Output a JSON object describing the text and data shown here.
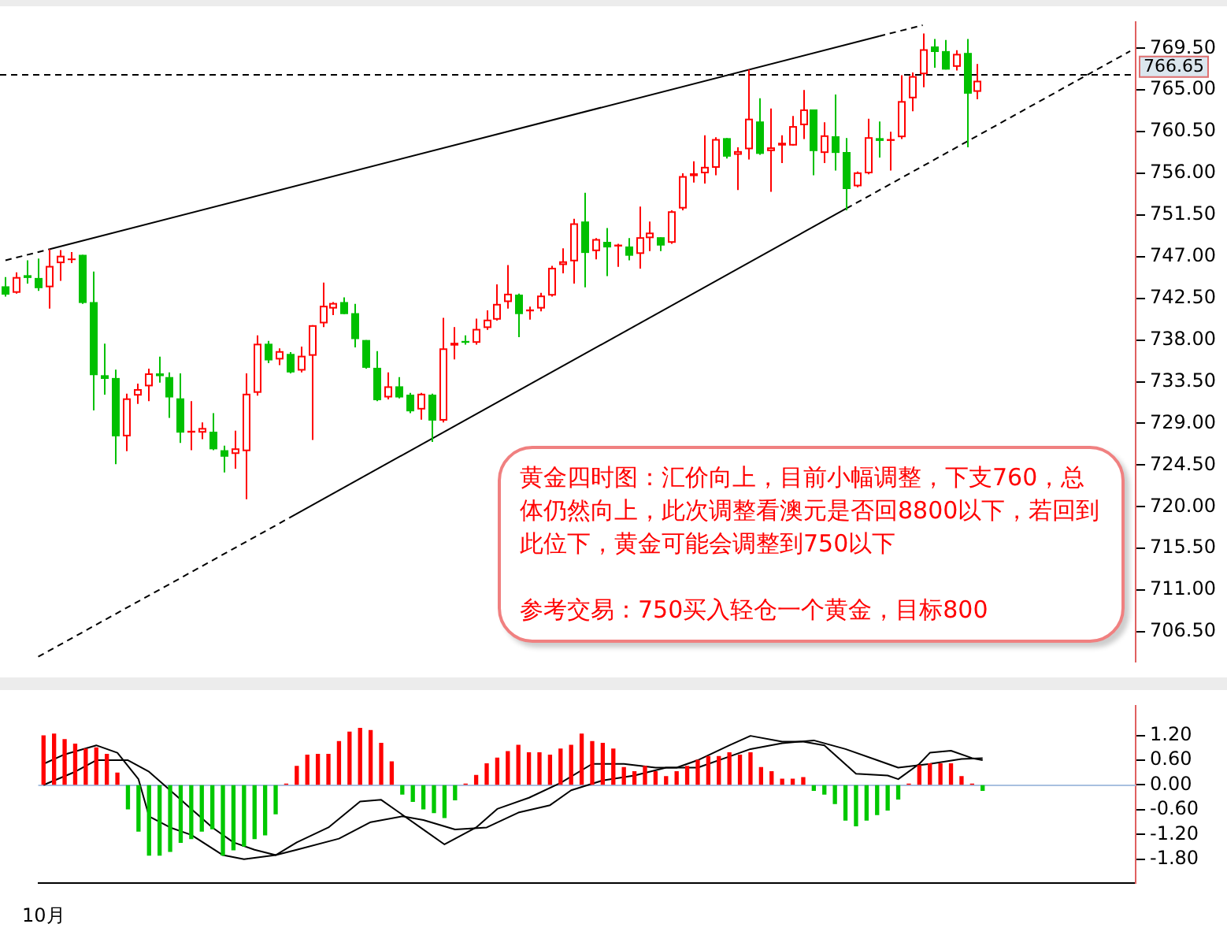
{
  "chart_data": [
    {
      "type": "candlestick",
      "categories": [
        null,
        null,
        null,
        null,
        null,
        null,
        null,
        null,
        null,
        null,
        null,
        null,
        null,
        null,
        null,
        null,
        null,
        null,
        null,
        null,
        null,
        null,
        null,
        null,
        null,
        null,
        null,
        null,
        null,
        null,
        null,
        null,
        null,
        null,
        null,
        null,
        null,
        null,
        null,
        null,
        null,
        null,
        null,
        null,
        null,
        null,
        null,
        null,
        null,
        null,
        null,
        null,
        null,
        null,
        null,
        null,
        null,
        null,
        null,
        null,
        null,
        null,
        null,
        null,
        null,
        null,
        null,
        null,
        null,
        null,
        null,
        null,
        null,
        null,
        null,
        null,
        null,
        null,
        null,
        null,
        null,
        null,
        null,
        null,
        null,
        null,
        null,
        null,
        null,
        null,
        null,
        null,
        null,
        null,
        null,
        null,
        null,
        null,
        null,
        null,
        null,
        null,
        null,
        null
      ],
      "ohlc": [
        [
          743.8,
          744.8,
          742.7,
          742.9
        ],
        [
          743.1,
          745.3,
          743.0,
          744.8
        ],
        [
          745.0,
          746.6,
          744.1,
          744.7
        ],
        [
          744.7,
          746.8,
          743.3,
          743.6
        ],
        [
          743.7,
          747.8,
          741.4,
          746.0
        ],
        [
          746.3,
          747.7,
          744.4,
          747.1
        ],
        [
          746.7,
          747.5,
          746.3,
          746.8
        ],
        [
          747.2,
          747.2,
          741.9,
          742.0
        ],
        [
          742.1,
          745.4,
          730.4,
          734.2
        ],
        [
          734.2,
          737.6,
          732.1,
          733.8
        ],
        [
          733.9,
          734.8,
          724.6,
          727.6
        ],
        [
          727.6,
          732.2,
          726.0,
          731.7
        ],
        [
          732.0,
          733.3,
          731.1,
          732.7
        ],
        [
          733.0,
          734.9,
          731.4,
          734.4
        ],
        [
          734.4,
          736.2,
          733.4,
          734.1
        ],
        [
          734.0,
          734.5,
          729.6,
          731.8
        ],
        [
          731.7,
          734.4,
          726.9,
          728.0
        ],
        [
          728.0,
          731.4,
          726.1,
          728.2
        ],
        [
          728.0,
          729.1,
          727.3,
          728.5
        ],
        [
          728.1,
          730.1,
          726.1,
          726.2
        ],
        [
          726.1,
          726.6,
          723.7,
          725.4
        ],
        [
          725.7,
          728.2,
          724.1,
          726.3
        ],
        [
          726.0,
          734.4,
          720.8,
          732.2
        ],
        [
          732.3,
          738.5,
          732.0,
          737.6
        ],
        [
          737.6,
          737.9,
          735.5,
          735.8
        ],
        [
          735.9,
          737.1,
          735.3,
          736.8
        ],
        [
          736.5,
          736.7,
          734.4,
          734.5
        ],
        [
          734.7,
          737.3,
          734.5,
          736.3
        ],
        [
          736.3,
          739.6,
          727.2,
          739.6
        ],
        [
          739.8,
          744.2,
          739.4,
          741.7
        ],
        [
          741.4,
          742.1,
          740.7,
          742.0
        ],
        [
          742.1,
          742.6,
          740.8,
          740.8
        ],
        [
          740.9,
          741.9,
          737.2,
          738.1
        ],
        [
          738.0,
          738.0,
          734.9,
          735.0
        ],
        [
          735.0,
          736.8,
          731.4,
          731.5
        ],
        [
          731.8,
          734.5,
          731.6,
          733.0
        ],
        [
          733.0,
          734.0,
          731.7,
          731.8
        ],
        [
          732.1,
          732.3,
          730.1,
          730.3
        ],
        [
          730.5,
          732.3,
          729.4,
          732.2
        ],
        [
          732.1,
          732.2,
          727.0,
          729.3
        ],
        [
          729.3,
          740.4,
          729.1,
          737.1
        ],
        [
          737.4,
          739.4,
          735.9,
          737.7
        ],
        [
          737.9,
          738.5,
          737.5,
          737.7
        ],
        [
          737.7,
          740.3,
          737.5,
          739.2
        ],
        [
          739.3,
          741.2,
          739.1,
          740.2
        ],
        [
          740.2,
          744.0,
          740.1,
          741.9
        ],
        [
          742.1,
          746.1,
          741.4,
          743.0
        ],
        [
          742.9,
          743.0,
          738.3,
          740.8
        ],
        [
          741.1,
          741.6,
          740.2,
          741.3
        ],
        [
          741.4,
          743.1,
          741.1,
          742.8
        ],
        [
          742.8,
          746.0,
          742.7,
          745.8
        ],
        [
          746.1,
          747.9,
          745.2,
          746.5
        ],
        [
          746.5,
          751.1,
          744.1,
          750.6
        ],
        [
          750.8,
          753.9,
          743.7,
          747.4
        ],
        [
          747.6,
          749.0,
          746.7,
          748.9
        ],
        [
          748.6,
          750.1,
          744.9,
          748.0
        ],
        [
          748.1,
          748.4,
          745.9,
          748.3
        ],
        [
          748.1,
          749.0,
          746.6,
          747.1
        ],
        [
          747.3,
          752.4,
          745.7,
          749.1
        ],
        [
          749.0,
          750.8,
          747.6,
          749.6
        ],
        [
          749.1,
          749.1,
          747.6,
          748.2
        ],
        [
          748.5,
          752.0,
          748.4,
          751.9
        ],
        [
          752.2,
          756.0,
          752.0,
          755.7
        ],
        [
          755.7,
          757.3,
          755.0,
          756.0
        ],
        [
          756.0,
          760.1,
          754.9,
          756.7
        ],
        [
          756.6,
          759.9,
          755.8,
          759.7
        ],
        [
          759.8,
          759.8,
          757.6,
          757.8
        ],
        [
          758.0,
          758.8,
          754.2,
          758.4
        ],
        [
          758.6,
          767.2,
          757.5,
          761.9
        ],
        [
          761.6,
          764.1,
          758.0,
          758.1
        ],
        [
          758.4,
          763.0,
          754.0,
          758.8
        ],
        [
          759.0,
          760.1,
          757.1,
          759.3
        ],
        [
          759.0,
          762.2,
          759.0,
          761.1
        ],
        [
          761.2,
          765.0,
          759.7,
          762.9
        ],
        [
          762.9,
          762.9,
          755.8,
          758.4
        ],
        [
          758.2,
          761.5,
          757.1,
          760.1
        ],
        [
          760.0,
          764.5,
          756.3,
          758.2
        ],
        [
          758.3,
          759.8,
          752.0,
          754.3
        ],
        [
          754.6,
          756.2,
          754.5,
          756.1
        ],
        [
          756.0,
          761.9,
          755.9,
          759.9
        ],
        [
          759.8,
          761.6,
          757.7,
          759.5
        ],
        [
          759.5,
          760.5,
          756.3,
          759.7
        ],
        [
          759.9,
          766.6,
          759.7,
          763.8
        ],
        [
          764.1,
          766.9,
          762.7,
          766.5
        ],
        [
          766.7,
          771.1,
          765.3,
          769.4
        ],
        [
          769.7,
          770.5,
          767.4,
          769.1
        ],
        [
          769.2,
          770.4,
          767.2,
          767.2
        ],
        [
          767.5,
          769.3,
          767.1,
          768.9
        ],
        [
          769.0,
          770.5,
          758.8,
          764.6
        ],
        [
          764.8,
          767.8,
          764.0,
          766.0
        ],
        null,
        null,
        null,
        null,
        null,
        null,
        null,
        null,
        null,
        null,
        null,
        null,
        null,
        null
      ],
      "colors": [
        "#00c000",
        "#ff0000",
        "#00c000",
        "#00c000",
        "#ff0000",
        "#ff0000",
        "#ff0000",
        "#00c000",
        "#00c000",
        "#00c000",
        "#00c000",
        "#ff0000",
        "#ff0000",
        "#ff0000",
        "#00c000",
        "#00c000",
        "#00c000",
        "#ff0000",
        "#ff0000",
        "#00c000",
        "#00c000",
        "#ff0000",
        "#ff0000",
        "#ff0000",
        "#00c000",
        "#ff0000",
        "#00c000",
        "#ff0000",
        "#ff0000",
        "#ff0000",
        "#ff0000",
        "#00c000",
        "#00c000",
        "#00c000",
        "#00c000",
        "#ff0000",
        "#00c000",
        "#00c000",
        "#ff0000",
        "#00c000",
        "#ff0000",
        "#ff0000",
        "#00c000",
        "#ff0000",
        "#ff0000",
        "#ff0000",
        "#ff0000",
        "#00c000",
        "#ff0000",
        "#ff0000",
        "#ff0000",
        "#ff0000",
        "#ff0000",
        "#00c000",
        "#ff0000",
        "#00c000",
        "#ff0000",
        "#00c000",
        "#ff0000",
        "#ff0000",
        "#00c000",
        "#ff0000",
        "#ff0000",
        "#ff0000",
        "#ff0000",
        "#ff0000",
        "#00c000",
        "#ff0000",
        "#ff0000",
        "#00c000",
        "#ff0000",
        "#ff0000",
        "#ff0000",
        "#ff0000",
        "#00c000",
        "#ff0000",
        "#00c000",
        "#00c000",
        "#ff0000",
        "#ff0000",
        "#00c000",
        "#ff0000",
        "#ff0000",
        "#ff0000",
        "#ff0000",
        "#00c000",
        "#00c000",
        "#ff0000",
        "#00c000",
        "#ff0000",
        null,
        null,
        null,
        null,
        null,
        null,
        null,
        null,
        null,
        null,
        null,
        null,
        null,
        null
      ],
      "ylim": [
        703.3,
        772.3
      ],
      "yticks": [
        {
          "value": 706.5,
          "label": "706.50"
        },
        {
          "value": 711,
          "label": "711.00"
        },
        {
          "value": 715.5,
          "label": "715.50"
        },
        {
          "value": 720,
          "label": "720.00"
        },
        {
          "value": 724.5,
          "label": "724.50"
        },
        {
          "value": 729,
          "label": "729.00"
        },
        {
          "value": 733.5,
          "label": "733.50"
        },
        {
          "value": 738,
          "label": "738.00"
        },
        {
          "value": 742.5,
          "label": "742.50"
        },
        {
          "value": 747,
          "label": "747.00"
        },
        {
          "value": 751.5,
          "label": "751.50"
        },
        {
          "value": 756,
          "label": "756.00"
        },
        {
          "value": 760.5,
          "label": "760.50"
        },
        {
          "value": 765,
          "label": "765.00"
        },
        {
          "value": 769.5,
          "label": "769.50"
        }
      ],
      "tick_labels": "y",
      "ref_lines": [
        {
          "axis": "y",
          "value": 766.65,
          "label": "766.65",
          "color": "#000000",
          "line_style": "dashed"
        }
      ],
      "series": [
        {
          "type": "line",
          "color": "#000000",
          "line_style": "dashed",
          "values": [
            746.6,
            null,
            null,
            null,
            747.8,
            null,
            null,
            null,
            null,
            null,
            null,
            null,
            null,
            null,
            null,
            null,
            null,
            null,
            null,
            null,
            null,
            null,
            null,
            null,
            null,
            null,
            null,
            null,
            null,
            null,
            null,
            null,
            null,
            null,
            null,
            null,
            null,
            null,
            null,
            null,
            null,
            null,
            null,
            null,
            null,
            null,
            null,
            null,
            null,
            null,
            null,
            null,
            null,
            null,
            null,
            null,
            null,
            null,
            null,
            null,
            null,
            null,
            null,
            null,
            null,
            null,
            null,
            null,
            null,
            null,
            null,
            null,
            null,
            null,
            null,
            null,
            null,
            null,
            null,
            null,
            null,
            null,
            null,
            null,
            null,
            null,
            null,
            null,
            null,
            null,
            null,
            null,
            null,
            null,
            null,
            null,
            null,
            null,
            null,
            null,
            null,
            null,
            null,
            null
          ]
        },
        {
          "type": "line",
          "color": "#000000",
          "line_style": "solid",
          "values": [
            null,
            null,
            null,
            null,
            747.8,
            null,
            null,
            null,
            null,
            null,
            null,
            null,
            null,
            null,
            null,
            null,
            null,
            null,
            null,
            null,
            null,
            null,
            null,
            null,
            null,
            null,
            null,
            null,
            null,
            null,
            null,
            null,
            null,
            null,
            null,
            null,
            null,
            null,
            null,
            null,
            null,
            null,
            null,
            null,
            null,
            null,
            null,
            null,
            null,
            null,
            null,
            null,
            null,
            null,
            null,
            null,
            null,
            null,
            null,
            null,
            null,
            null,
            null,
            null,
            null,
            null,
            null,
            null,
            null,
            null,
            null,
            null,
            null,
            null,
            null,
            null,
            null,
            null,
            null,
            null,
            770.8,
            null,
            null,
            null,
            null,
            null,
            null,
            null,
            null,
            null,
            null,
            null,
            null,
            null,
            null,
            null,
            null,
            null,
            null,
            null,
            null,
            null,
            null,
            null
          ]
        },
        {
          "type": "line",
          "color": "#000000",
          "line_style": "dashed",
          "values": [
            null,
            null,
            null,
            null,
            null,
            null,
            null,
            null,
            null,
            null,
            null,
            null,
            null,
            null,
            null,
            null,
            null,
            null,
            null,
            null,
            null,
            null,
            null,
            null,
            null,
            null,
            null,
            null,
            null,
            null,
            null,
            null,
            null,
            null,
            null,
            null,
            null,
            null,
            null,
            null,
            null,
            null,
            null,
            null,
            null,
            null,
            null,
            null,
            null,
            null,
            null,
            null,
            null,
            null,
            null,
            null,
            null,
            null,
            null,
            null,
            null,
            null,
            null,
            null,
            null,
            null,
            null,
            null,
            null,
            null,
            null,
            null,
            null,
            null,
            null,
            null,
            null,
            null,
            null,
            null,
            770.8,
            null,
            null,
            null,
            772.0,
            null,
            null,
            null,
            null,
            null,
            null,
            null,
            null,
            null,
            null,
            null,
            null,
            null,
            null,
            null,
            null,
            null,
            null,
            null
          ]
        },
        {
          "type": "line",
          "color": "#000000",
          "line_style": "dashed",
          "values": [
            null,
            null,
            null,
            703.8,
            null,
            null,
            null,
            null,
            null,
            null,
            null,
            null,
            null,
            null,
            null,
            null,
            null,
            null,
            null,
            null,
            null,
            null,
            null,
            null,
            null,
            null,
            718.8,
            null,
            null,
            null,
            null,
            null,
            null,
            null,
            null,
            null,
            null,
            null,
            null,
            null,
            null,
            null,
            null,
            null,
            null,
            null,
            null,
            null,
            null,
            null,
            null,
            null,
            null,
            null,
            null,
            null,
            null,
            null,
            null,
            null,
            null,
            null,
            null,
            null,
            null,
            null,
            null,
            null,
            null,
            null,
            null,
            null,
            null,
            null,
            null,
            null,
            null,
            null,
            null,
            null,
            null,
            null,
            null,
            null,
            null,
            null,
            null,
            null,
            null,
            null,
            null,
            null,
            null,
            null,
            null,
            null,
            null,
            null,
            null,
            null,
            null,
            null,
            null,
            null
          ]
        },
        {
          "type": "line",
          "color": "#000000",
          "line_style": "solid",
          "values": [
            null,
            null,
            null,
            null,
            null,
            null,
            null,
            null,
            null,
            null,
            null,
            null,
            null,
            null,
            null,
            null,
            null,
            null,
            null,
            null,
            null,
            null,
            null,
            null,
            null,
            null,
            718.8,
            null,
            null,
            null,
            null,
            null,
            null,
            null,
            null,
            null,
            null,
            null,
            null,
            null,
            null,
            null,
            null,
            null,
            null,
            null,
            null,
            null,
            null,
            null,
            null,
            null,
            null,
            null,
            null,
            null,
            null,
            null,
            null,
            null,
            null,
            null,
            null,
            null,
            null,
            null,
            null,
            null,
            null,
            null,
            null,
            null,
            null,
            null,
            null,
            null,
            null,
            752.2,
            null,
            null,
            null,
            null,
            null,
            null,
            null,
            null,
            null,
            null,
            null,
            null,
            null,
            null,
            null,
            null,
            null,
            null,
            null,
            null,
            null,
            null,
            null,
            null,
            null,
            null
          ]
        },
        {
          "type": "line",
          "color": "#000000",
          "line_style": "dashed",
          "values": [
            null,
            null,
            null,
            null,
            null,
            null,
            null,
            null,
            null,
            null,
            null,
            null,
            null,
            null,
            null,
            null,
            null,
            null,
            null,
            null,
            null,
            null,
            null,
            null,
            null,
            null,
            null,
            null,
            null,
            null,
            null,
            null,
            null,
            null,
            null,
            null,
            null,
            null,
            null,
            null,
            null,
            null,
            null,
            null,
            null,
            null,
            null,
            null,
            null,
            null,
            null,
            null,
            null,
            null,
            null,
            null,
            null,
            null,
            null,
            null,
            null,
            null,
            null,
            null,
            null,
            null,
            null,
            null,
            null,
            null,
            null,
            null,
            null,
            null,
            null,
            null,
            null,
            752.2,
            null,
            null,
            null,
            null,
            null,
            null,
            null,
            null,
            null,
            null,
            null,
            null,
            null,
            null,
            null,
            null,
            null,
            null,
            null,
            null,
            null,
            null,
            null,
            null,
            null,
            769.2
          ]
        }
      ],
      "annotations": [
        "黄金四时图：汇价向上，目前小幅调整，下支760，总体仍然向上，此次调整看澳元是否回8800以下，若回到此位下，黄金可能会调整到750以下",
        "参考交易：750买入轻仓一个黄金，目标800"
      ]
    },
    {
      "type": "bar",
      "categories": [
        "10月",
        null,
        null,
        null,
        null,
        null,
        null,
        null,
        null,
        null,
        null,
        null,
        null,
        null,
        null,
        null,
        null,
        null,
        null,
        null,
        null,
        null,
        null,
        null,
        null,
        null,
        null,
        null,
        null,
        null,
        null,
        null,
        null,
        null,
        null,
        null,
        null,
        null,
        null,
        null,
        null,
        null,
        null,
        null,
        null,
        null,
        null,
        null,
        null,
        null,
        null,
        null,
        null,
        null,
        null,
        null,
        null,
        null,
        null,
        null,
        null,
        null,
        null,
        null,
        null,
        null,
        null,
        null,
        null,
        null,
        null,
        null,
        null,
        null,
        null,
        null,
        null,
        null,
        null,
        null,
        null,
        null,
        null,
        null,
        null,
        null,
        null,
        null,
        null,
        null,
        null,
        null,
        null,
        null,
        null,
        null,
        null,
        null,
        null,
        null,
        null,
        null,
        null,
        null
      ],
      "values": [
        1.19,
        1.23,
        1.1,
        0.99,
        0.87,
        0.9,
        0.74,
        0.29,
        -0.58,
        -1.12,
        -1.7,
        -1.7,
        -1.61,
        -1.39,
        -1.3,
        -1.12,
        -1.06,
        -1.7,
        -1.57,
        -1.48,
        -1.3,
        -1.21,
        -0.7,
        0.02,
        0.45,
        0.72,
        0.74,
        0.74,
        1.05,
        1.28,
        1.37,
        1.32,
        1.01,
        0.56,
        -0.22,
        -0.4,
        -0.58,
        -0.67,
        -0.79,
        -0.36,
        0.02,
        0.23,
        0.51,
        0.65,
        0.81,
        0.96,
        0.78,
        0.78,
        0.72,
        0.87,
        0.96,
        1.23,
        1.05,
        1.01,
        0.87,
        0.42,
        0.32,
        0.45,
        0.32,
        0.2,
        0.32,
        0.45,
        0.6,
        0.69,
        0.69,
        0.78,
        0.72,
        0.78,
        0.42,
        0.32,
        0.14,
        0.14,
        0.18,
        -0.13,
        -0.22,
        -0.45,
        -0.85,
        -0.99,
        -0.85,
        -0.72,
        -0.61,
        -0.34,
        0.02,
        0.47,
        0.51,
        0.51,
        0.51,
        0.2,
        0.02,
        -0.13,
        null,
        null,
        null,
        null,
        null,
        null,
        null,
        null,
        null,
        null,
        null,
        null,
        null,
        null
      ],
      "colors": [
        "#ff0000",
        "#ff0000",
        "#ff0000",
        "#ff0000",
        "#ff0000",
        "#ff0000",
        "#ff0000",
        "#ff0000",
        "#00c800",
        "#00c800",
        "#00c800",
        "#00c800",
        "#00c800",
        "#00c800",
        "#00c800",
        "#00c800",
        "#00c800",
        "#00c800",
        "#00c800",
        "#00c800",
        "#00c800",
        "#00c800",
        "#00c800",
        "#ff0000",
        "#ff0000",
        "#ff0000",
        "#ff0000",
        "#ff0000",
        "#ff0000",
        "#ff0000",
        "#ff0000",
        "#ff0000",
        "#ff0000",
        "#ff0000",
        "#00c800",
        "#00c800",
        "#00c800",
        "#00c800",
        "#00c800",
        "#00c800",
        "#ff0000",
        "#ff0000",
        "#ff0000",
        "#ff0000",
        "#ff0000",
        "#ff0000",
        "#ff0000",
        "#ff0000",
        "#ff0000",
        "#ff0000",
        "#ff0000",
        "#ff0000",
        "#ff0000",
        "#ff0000",
        "#ff0000",
        "#ff0000",
        "#ff0000",
        "#ff0000",
        "#ff0000",
        "#ff0000",
        "#ff0000",
        "#ff0000",
        "#ff0000",
        "#ff0000",
        "#ff0000",
        "#ff0000",
        "#ff0000",
        "#ff0000",
        "#ff0000",
        "#ff0000",
        "#ff0000",
        "#ff0000",
        "#ff0000",
        "#00c800",
        "#00c800",
        "#00c800",
        "#00c800",
        "#00c800",
        "#00c800",
        "#00c800",
        "#00c800",
        "#00c800",
        "#ff0000",
        "#ff0000",
        "#ff0000",
        "#ff0000",
        "#ff0000",
        "#ff0000",
        "#ff0000",
        "#00c800",
        null,
        null,
        null,
        null,
        null,
        null,
        null,
        null,
        null,
        null,
        null,
        null,
        null,
        null
      ],
      "ylim": [
        -2.38,
        1.91
      ],
      "yticks": [
        {
          "value": -1.8,
          "label": "-1.80"
        },
        {
          "value": -1.2,
          "label": "-1.20"
        },
        {
          "value": -0.6,
          "label": "-0.60"
        },
        {
          "value": 0,
          "label": "0.00"
        },
        {
          "value": 0.6,
          "label": "0.60"
        },
        {
          "value": 1.2,
          "label": "1.20"
        }
      ],
      "ref_lines": [
        {
          "axis": "y",
          "value": 0,
          "color": "#a8c0e0",
          "line_style": "solid"
        }
      ],
      "series": [
        {
          "type": "line",
          "color": "#000000",
          "values": [
            0.51,
            null,
            0.74,
            null,
            null,
            0.96,
            null,
            0.78,
            null,
            0.14,
            -0.76,
            null,
            -1.03,
            null,
            -1.21,
            null,
            null,
            -1.7,
            null,
            -1.8,
            null,
            null,
            -1.7,
            null,
            -1.39,
            null,
            null,
            -1.03,
            null,
            null,
            -0.4,
            null,
            -0.36,
            null,
            -0.72,
            null,
            -1.08,
            null,
            -1.44,
            null,
            null,
            -1.03,
            null,
            -0.58,
            null,
            null,
            -0.31,
            null,
            null,
            0.05,
            null,
            null,
            0.51,
            null,
            null,
            0.51,
            null,
            null,
            0.42,
            null,
            0.42,
            null,
            0.6,
            null,
            null,
            0.96,
            null,
            1.19,
            null,
            null,
            1.05,
            null,
            1.05,
            null,
            0.96,
            null,
            null,
            0.27,
            null,
            null,
            0.23,
            0.14,
            null,
            0.51,
            0.78,
            null,
            0.83,
            null,
            0.65,
            0.6,
            null,
            null,
            null,
            null,
            null,
            null,
            null,
            null,
            null,
            null,
            null,
            null,
            null,
            null
          ]
        },
        {
          "type": "line",
          "color": "#000000",
          "values": [
            0.0,
            null,
            null,
            0.32,
            null,
            0.6,
            null,
            null,
            0.6,
            null,
            0.32,
            null,
            -0.13,
            null,
            -0.58,
            null,
            -1.03,
            null,
            -1.39,
            null,
            -1.57,
            null,
            -1.7,
            null,
            -1.57,
            null,
            null,
            null,
            -1.3,
            null,
            null,
            -0.9,
            null,
            null,
            -0.76,
            null,
            -0.85,
            null,
            null,
            -1.08,
            null,
            null,
            -1.03,
            null,
            null,
            -0.67,
            null,
            null,
            -0.49,
            null,
            -0.13,
            null,
            null,
            0.11,
            null,
            null,
            0.23,
            null,
            null,
            0.42,
            null,
            null,
            0.42,
            null,
            null,
            0.69,
            null,
            0.87,
            null,
            null,
            1.01,
            null,
            null,
            1.08,
            null,
            null,
            0.87,
            null,
            null,
            0.6,
            null,
            0.42,
            null,
            null,
            0.51,
            null,
            null,
            0.63,
            null,
            0.65,
            null,
            null,
            null,
            null,
            null,
            null,
            null,
            null,
            null,
            null,
            null,
            null,
            null,
            null
          ]
        }
      ]
    }
  ]
}
